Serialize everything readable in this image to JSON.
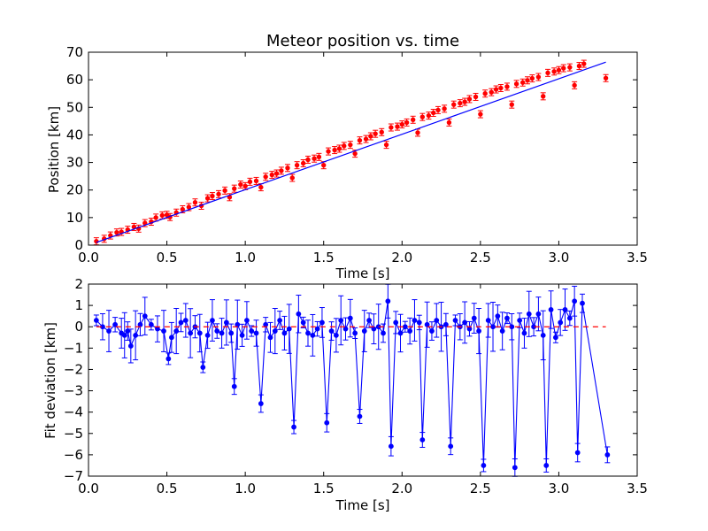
{
  "chart_data": [
    {
      "type": "scatter",
      "title": "Meteor position vs. time",
      "xlabel": "Time [s]",
      "ylabel": "Position [km]",
      "xlim": [
        0,
        3.5
      ],
      "ylim": [
        0,
        70
      ],
      "xticks": [
        "0.0",
        "0.5",
        "1.0",
        "1.5",
        "2.0",
        "2.5",
        "3.0",
        "3.5"
      ],
      "yticks": [
        "0",
        "10",
        "20",
        "30",
        "40",
        "50",
        "60",
        "70"
      ],
      "grid": false,
      "series": [
        {
          "marker": "dot",
          "color": "#ff0000",
          "points": [
            [
              0.05,
              1.4
            ],
            [
              0.1,
              2.3
            ],
            [
              0.14,
              3.5
            ],
            [
              0.18,
              4.6
            ],
            [
              0.21,
              4.8
            ],
            [
              0.25,
              5.6
            ],
            [
              0.29,
              6.6
            ],
            [
              0.32,
              6.0
            ],
            [
              0.36,
              8.0
            ],
            [
              0.4,
              8.5
            ],
            [
              0.43,
              10.0
            ],
            [
              0.47,
              10.8
            ],
            [
              0.5,
              11.0
            ],
            [
              0.52,
              10.2
            ],
            [
              0.56,
              11.8
            ],
            [
              0.6,
              13.0
            ],
            [
              0.64,
              13.8
            ],
            [
              0.68,
              15.5
            ],
            [
              0.72,
              14.3
            ],
            [
              0.76,
              17.0
            ],
            [
              0.79,
              17.8
            ],
            [
              0.83,
              18.5
            ],
            [
              0.87,
              19.8
            ],
            [
              0.9,
              17.4
            ],
            [
              0.93,
              20.5
            ],
            [
              0.97,
              22.0
            ],
            [
              1.0,
              21.4
            ],
            [
              1.03,
              23.0
            ],
            [
              1.07,
              23.3
            ],
            [
              1.1,
              21.0
            ],
            [
              1.13,
              24.8
            ],
            [
              1.17,
              25.5
            ],
            [
              1.2,
              26.0
            ],
            [
              1.23,
              27.0
            ],
            [
              1.27,
              28.0
            ],
            [
              1.3,
              24.4
            ],
            [
              1.33,
              29.0
            ],
            [
              1.37,
              29.7
            ],
            [
              1.4,
              31.0
            ],
            [
              1.44,
              31.4
            ],
            [
              1.47,
              32.0
            ],
            [
              1.5,
              29.0
            ],
            [
              1.53,
              34.0
            ],
            [
              1.57,
              34.5
            ],
            [
              1.6,
              35.0
            ],
            [
              1.63,
              36.0
            ],
            [
              1.67,
              36.4
            ],
            [
              1.7,
              33.2
            ],
            [
              1.73,
              38.0
            ],
            [
              1.77,
              38.5
            ],
            [
              1.8,
              39.5
            ],
            [
              1.83,
              40.4
            ],
            [
              1.87,
              41.0
            ],
            [
              1.9,
              36.4
            ],
            [
              1.93,
              42.7
            ],
            [
              1.97,
              43.0
            ],
            [
              2.0,
              43.8
            ],
            [
              2.03,
              44.5
            ],
            [
              2.07,
              45.5
            ],
            [
              2.1,
              40.8
            ],
            [
              2.13,
              46.5
            ],
            [
              2.17,
              47.0
            ],
            [
              2.2,
              48.0
            ],
            [
              2.23,
              49.0
            ],
            [
              2.27,
              49.5
            ],
            [
              2.3,
              44.5
            ],
            [
              2.33,
              51.0
            ],
            [
              2.37,
              51.5
            ],
            [
              2.4,
              52.0
            ],
            [
              2.43,
              53.0
            ],
            [
              2.47,
              53.8
            ],
            [
              2.5,
              47.5
            ],
            [
              2.53,
              55.0
            ],
            [
              2.57,
              55.5
            ],
            [
              2.6,
              56.5
            ],
            [
              2.63,
              57.0
            ],
            [
              2.67,
              57.5
            ],
            [
              2.7,
              51.0
            ],
            [
              2.73,
              58.5
            ],
            [
              2.77,
              59.0
            ],
            [
              2.8,
              59.8
            ],
            [
              2.83,
              60.5
            ],
            [
              2.87,
              61.0
            ],
            [
              2.9,
              54.0
            ],
            [
              2.93,
              62.5
            ],
            [
              2.97,
              63.0
            ],
            [
              3.0,
              63.5
            ],
            [
              3.03,
              64.2
            ],
            [
              3.07,
              64.5
            ],
            [
              3.1,
              58.0
            ],
            [
              3.13,
              65.0
            ],
            [
              3.16,
              65.8
            ],
            [
              3.3,
              60.6
            ]
          ]
        },
        {
          "marker": "line",
          "color": "#0000ff",
          "x": [
            0.05,
            3.3
          ],
          "y": [
            1.0,
            66.4
          ]
        }
      ]
    },
    {
      "type": "line",
      "title": "",
      "xlabel": "Time [s]",
      "ylabel": "Fit deviation [km]",
      "xlim": [
        0,
        3.5
      ],
      "ylim": [
        -7,
        2
      ],
      "xticks": [
        "0.0",
        "0.5",
        "1.0",
        "1.5",
        "2.0",
        "2.5",
        "3.0",
        "3.5"
      ],
      "yticks": [
        "−7",
        "−6",
        "−5",
        "−4",
        "−3",
        "−2",
        "−1",
        "0",
        "1",
        "2"
      ],
      "grid": false,
      "series": [
        {
          "marker": "dot",
          "color": "#0000ff",
          "points": [
            [
              0.05,
              0.3
            ],
            [
              0.09,
              0.0
            ],
            [
              0.13,
              -0.2
            ],
            [
              0.17,
              0.1
            ],
            [
              0.21,
              -0.3
            ],
            [
              0.23,
              -0.4
            ],
            [
              0.25,
              -0.2
            ],
            [
              0.27,
              -0.9
            ],
            [
              0.3,
              -0.4
            ],
            [
              0.33,
              0.1
            ],
            [
              0.36,
              0.5
            ],
            [
              0.4,
              0.1
            ],
            [
              0.44,
              -0.1
            ],
            [
              0.48,
              -0.2
            ],
            [
              0.51,
              -1.5
            ],
            [
              0.53,
              -0.5
            ],
            [
              0.56,
              -0.2
            ],
            [
              0.59,
              0.2
            ],
            [
              0.62,
              0.3
            ],
            [
              0.65,
              -0.3
            ],
            [
              0.68,
              0.0
            ],
            [
              0.71,
              -0.3
            ],
            [
              0.73,
              -1.9
            ],
            [
              0.76,
              -0.4
            ],
            [
              0.79,
              0.3
            ],
            [
              0.82,
              -0.2
            ],
            [
              0.85,
              -0.3
            ],
            [
              0.88,
              0.2
            ],
            [
              0.91,
              -0.3
            ],
            [
              0.93,
              -2.8
            ],
            [
              0.95,
              0.1
            ],
            [
              0.98,
              -0.4
            ],
            [
              1.01,
              0.3
            ],
            [
              1.04,
              -0.2
            ],
            [
              1.07,
              -0.3
            ],
            [
              1.1,
              -3.6
            ],
            [
              1.13,
              0.1
            ],
            [
              1.16,
              -0.5
            ],
            [
              1.19,
              -0.2
            ],
            [
              1.22,
              0.3
            ],
            [
              1.25,
              -0.3
            ],
            [
              1.28,
              -0.1
            ],
            [
              1.31,
              -4.7
            ],
            [
              1.34,
              0.6
            ],
            [
              1.37,
              0.2
            ],
            [
              1.4,
              -0.3
            ],
            [
              1.43,
              -0.4
            ],
            [
              1.46,
              -0.1
            ],
            [
              1.49,
              0.2
            ],
            [
              1.52,
              -4.5
            ],
            [
              1.55,
              -0.2
            ],
            [
              1.58,
              -0.4
            ],
            [
              1.61,
              0.3
            ],
            [
              1.64,
              -0.1
            ],
            [
              1.67,
              0.4
            ],
            [
              1.7,
              -0.3
            ],
            [
              1.73,
              -4.2
            ],
            [
              1.76,
              -0.2
            ],
            [
              1.79,
              0.3
            ],
            [
              1.82,
              -0.1
            ],
            [
              1.85,
              0.0
            ],
            [
              1.88,
              -0.3
            ],
            [
              1.91,
              1.2
            ],
            [
              1.93,
              -5.6
            ],
            [
              1.96,
              0.2
            ],
            [
              1.99,
              -0.3
            ],
            [
              2.02,
              0.0
            ],
            [
              2.05,
              -0.2
            ],
            [
              2.08,
              0.3
            ],
            [
              2.11,
              0.2
            ],
            [
              2.13,
              -5.3
            ],
            [
              2.16,
              0.1
            ],
            [
              2.19,
              -0.2
            ],
            [
              2.22,
              0.3
            ],
            [
              2.25,
              0.0
            ],
            [
              2.28,
              0.1
            ],
            [
              2.31,
              -5.6
            ],
            [
              2.34,
              0.3
            ],
            [
              2.37,
              0.0
            ],
            [
              2.4,
              0.2
            ],
            [
              2.43,
              -0.1
            ],
            [
              2.46,
              0.4
            ],
            [
              2.49,
              -0.2
            ],
            [
              2.52,
              -6.5
            ],
            [
              2.55,
              0.3
            ],
            [
              2.58,
              0.0
            ],
            [
              2.61,
              0.5
            ],
            [
              2.64,
              -0.2
            ],
            [
              2.67,
              0.4
            ],
            [
              2.7,
              0.0
            ],
            [
              2.72,
              -6.6
            ],
            [
              2.75,
              0.3
            ],
            [
              2.78,
              -0.3
            ],
            [
              2.81,
              0.6
            ],
            [
              2.84,
              0.0
            ],
            [
              2.87,
              0.6
            ],
            [
              2.9,
              -0.4
            ],
            [
              2.92,
              -6.5
            ],
            [
              2.95,
              0.8
            ],
            [
              2.98,
              -0.5
            ],
            [
              3.01,
              0.2
            ],
            [
              3.04,
              0.8
            ],
            [
              3.07,
              0.4
            ],
            [
              3.1,
              1.2
            ],
            [
              3.12,
              -5.9
            ],
            [
              3.15,
              1.1
            ],
            [
              3.31,
              -6.0
            ]
          ]
        },
        {
          "marker": "dashed",
          "color": "#ff0000",
          "x": [
            0.05,
            3.3
          ],
          "y": [
            0,
            0
          ]
        }
      ]
    }
  ]
}
